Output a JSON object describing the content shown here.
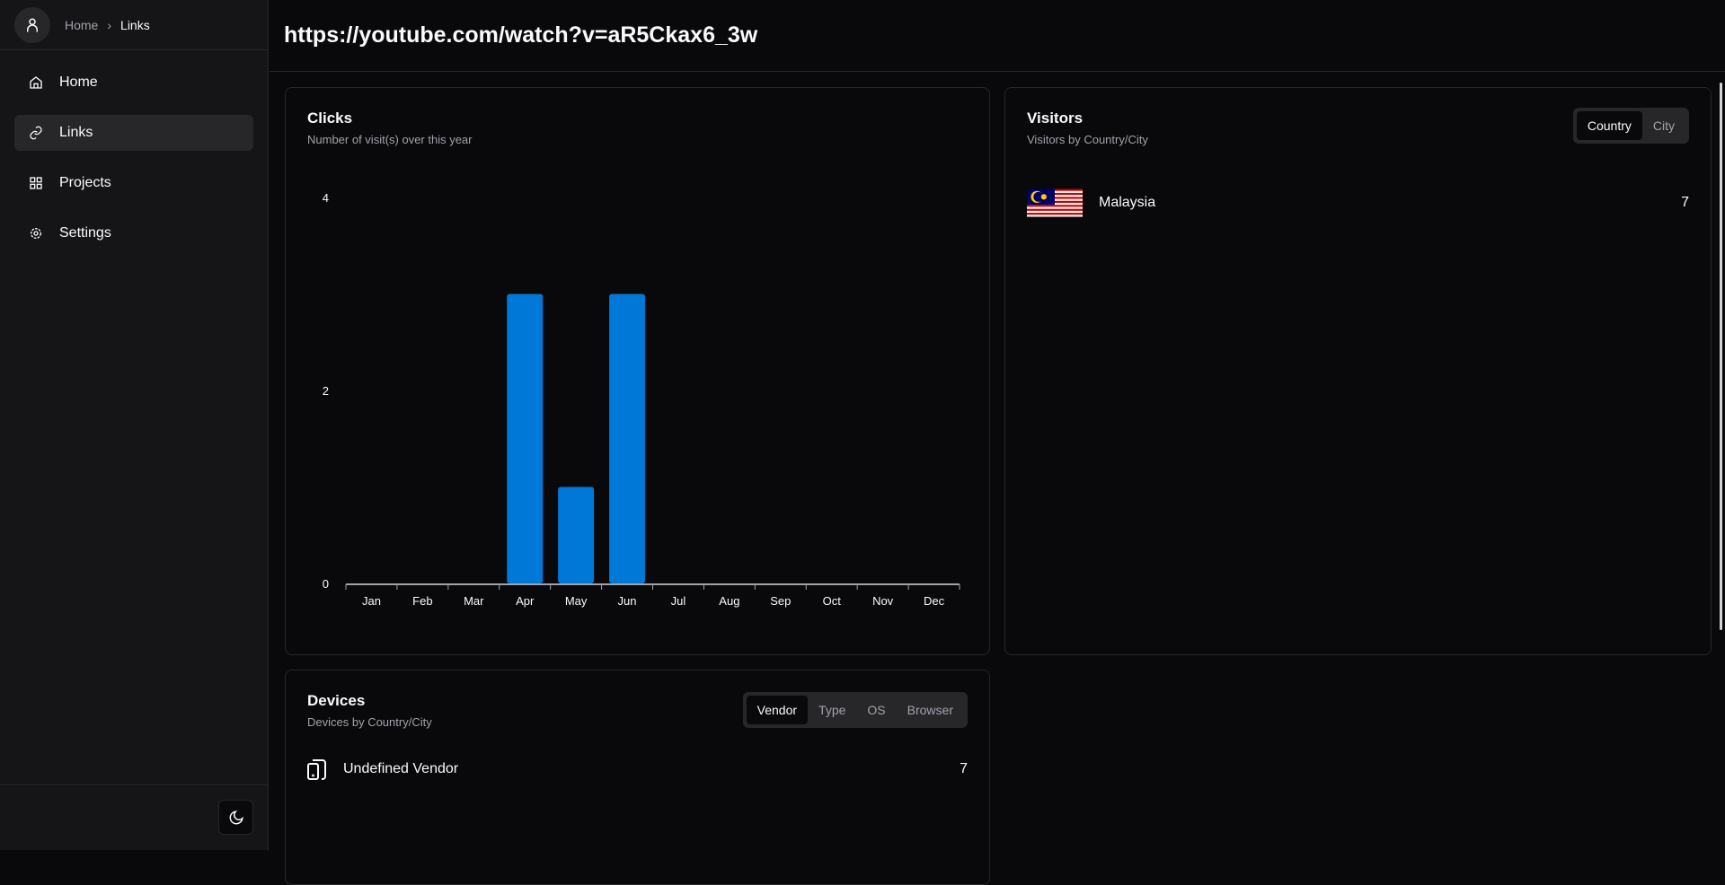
{
  "breadcrumb": {
    "home": "Home",
    "current": "Links"
  },
  "sidebar": {
    "items": [
      {
        "label": "Home",
        "icon": "home-icon"
      },
      {
        "label": "Links",
        "icon": "link-icon",
        "active": true
      },
      {
        "label": "Projects",
        "icon": "projects-icon"
      },
      {
        "label": "Settings",
        "icon": "gear-icon"
      }
    ]
  },
  "header": {
    "title": "https://youtube.com/watch?v=aR5Ckax6_3w"
  },
  "clicks": {
    "title": "Clicks",
    "subtitle": "Number of visit(s) over this year"
  },
  "chart_data": {
    "type": "bar",
    "categories": [
      "Jan",
      "Feb",
      "Mar",
      "Apr",
      "May",
      "Jun",
      "Jul",
      "Aug",
      "Sep",
      "Oct",
      "Nov",
      "Dec"
    ],
    "values": [
      0,
      0,
      0,
      3,
      1,
      3,
      0,
      0,
      0,
      0,
      0,
      0
    ],
    "yticks": [
      "0",
      "2",
      "4"
    ],
    "ylim": [
      0,
      4
    ],
    "color": "#0078d7"
  },
  "visitors": {
    "title": "Visitors",
    "subtitle": "Visitors by Country/City",
    "tabs": [
      "Country",
      "City"
    ],
    "active_tab": "Country",
    "rows": [
      {
        "name": "Malaysia",
        "count": "7"
      }
    ]
  },
  "devices": {
    "title": "Devices",
    "subtitle": "Devices by Country/City",
    "tabs": [
      "Vendor",
      "Type",
      "OS",
      "Browser"
    ],
    "active_tab": "Vendor",
    "rows": [
      {
        "name": "Undefined Vendor",
        "count": "7"
      }
    ]
  }
}
